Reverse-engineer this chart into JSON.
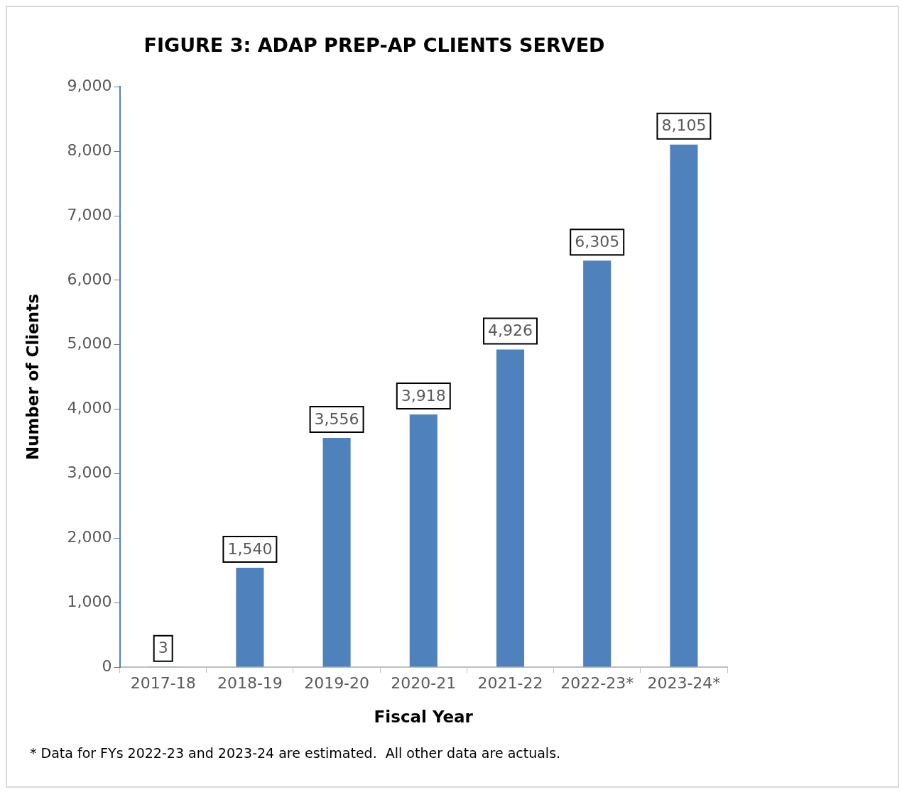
{
  "chart_data": {
    "type": "bar",
    "title": "FIGURE 3: ADAP PREP-AP CLIENTS SERVED",
    "xlabel": "Fiscal Year",
    "ylabel": "Number of Clients",
    "categories": [
      "2017-18",
      "2018-19",
      "2019-20",
      "2020-21",
      "2021-22",
      "2022-23*",
      "2023-24*"
    ],
    "values": [
      3,
      1540,
      3556,
      3918,
      4926,
      6305,
      8105
    ],
    "value_labels": [
      "3",
      "1,540",
      "3,556",
      "3,918",
      "4,926",
      "6,305",
      "8,105"
    ],
    "color": "#4f81bd",
    "ylim": [
      0,
      9000
    ],
    "yticks": [
      0,
      {
        "value": 1000,
        "label": "1,000"
      },
      {
        "value": 2000,
        "label": "2,000"
      },
      {
        "value": 3000,
        "label": "3,000"
      },
      {
        "value": 4000,
        "label": "4,000"
      },
      {
        "value": 5000,
        "label": "5,000"
      },
      {
        "value": 6000,
        "label": "6,000"
      },
      {
        "value": 7000,
        "label": "7,000"
      },
      {
        "value": 8000,
        "label": "8,000"
      },
      {
        "value": 9000,
        "label": "9,000"
      }
    ],
    "annotations": [
      "* Data for FYs 2022-23 and 2023-24 are estimated.  All other data are actuals."
    ]
  }
}
